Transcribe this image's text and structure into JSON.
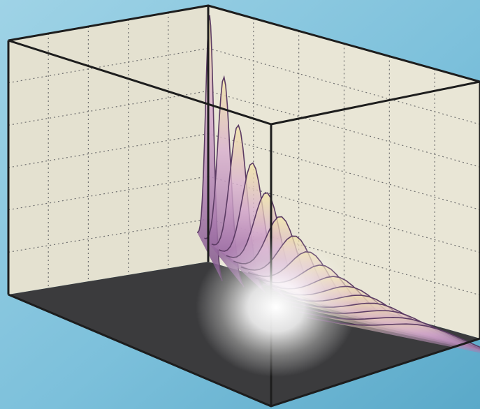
{
  "photo": {
    "subject": "3d-surface-plot-in-wireframe-box",
    "colors": {
      "background_light": "#9fd3e6",
      "background_dark": "#5aa9c9",
      "box_panel": "#e9e6d6",
      "box_panel_shadow": "#d9d6c4",
      "floor": "#3b3b3d",
      "grid": "#6f6f6f",
      "edge": "#1d1d1d",
      "surface_high": "#f2e6a6",
      "surface_mid": "#c99ac7",
      "surface_low": "#7a4f86",
      "ridge": "#5b3b63",
      "glare": "#ffffff"
    }
  }
}
